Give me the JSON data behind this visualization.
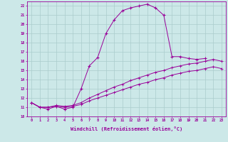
{
  "xlabel": "Windchill (Refroidissement éolien,°C)",
  "x_values": [
    0,
    1,
    2,
    3,
    4,
    5,
    6,
    7,
    8,
    9,
    10,
    11,
    12,
    13,
    14,
    15,
    16,
    17,
    18,
    19,
    20,
    21,
    22,
    23
  ],
  "line1": [
    11.5,
    11.0,
    10.8,
    11.1,
    10.8,
    11.0,
    13.0,
    15.5,
    16.4,
    19.0,
    20.5,
    21.5,
    21.8,
    22.0,
    22.2,
    21.8,
    21.0,
    16.5,
    16.5,
    16.3,
    16.2,
    16.3,
    null,
    null
  ],
  "line2": [
    11.5,
    11.0,
    11.0,
    11.2,
    11.1,
    11.2,
    11.5,
    12.0,
    12.4,
    12.8,
    13.2,
    13.5,
    13.9,
    14.2,
    14.5,
    14.8,
    15.0,
    15.3,
    15.5,
    15.7,
    15.8,
    16.0,
    16.2,
    16.0
  ],
  "line3": [
    11.5,
    11.0,
    11.0,
    11.1,
    11.0,
    11.1,
    11.3,
    11.7,
    12.0,
    12.3,
    12.6,
    12.9,
    13.2,
    13.5,
    13.7,
    14.0,
    14.2,
    14.5,
    14.7,
    14.9,
    15.0,
    15.2,
    15.4,
    15.2
  ],
  "ylim": [
    10,
    22.5
  ],
  "yticks": [
    10,
    11,
    12,
    13,
    14,
    15,
    16,
    17,
    18,
    19,
    20,
    21,
    22
  ],
  "line_color": "#990099",
  "bg_color": "#cce8e8",
  "grid_color": "#aacccc",
  "marker": "+"
}
